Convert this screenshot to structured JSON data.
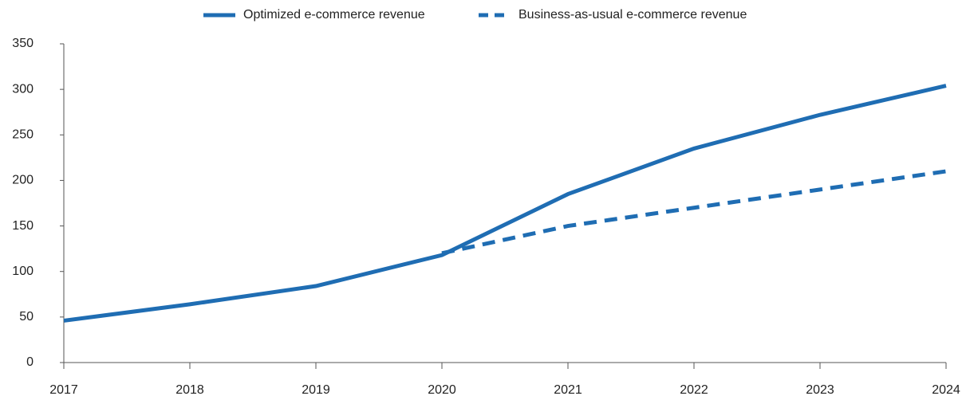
{
  "chart_data": {
    "type": "line",
    "x": [
      2017,
      2018,
      2019,
      2020,
      2021,
      2022,
      2023,
      2024
    ],
    "series": [
      {
        "name": "Optimized e-commerce revenue",
        "color": "#1f6db3",
        "style": "solid",
        "values": [
          46,
          64,
          84,
          118,
          185,
          235,
          272,
          304
        ]
      },
      {
        "name": "Business-as-usual e-commerce revenue",
        "color": "#1f6db3",
        "style": "dashed",
        "values": [
          null,
          null,
          null,
          120,
          150,
          170,
          190,
          210
        ]
      }
    ],
    "xlim": [
      2017,
      2024
    ],
    "xticks": [
      2017,
      2018,
      2019,
      2020,
      2021,
      2022,
      2023,
      2024
    ],
    "ylim": [
      0,
      350
    ],
    "yticks": [
      0,
      50,
      100,
      150,
      200,
      250,
      300,
      350
    ],
    "grid": false,
    "legend": "top"
  }
}
